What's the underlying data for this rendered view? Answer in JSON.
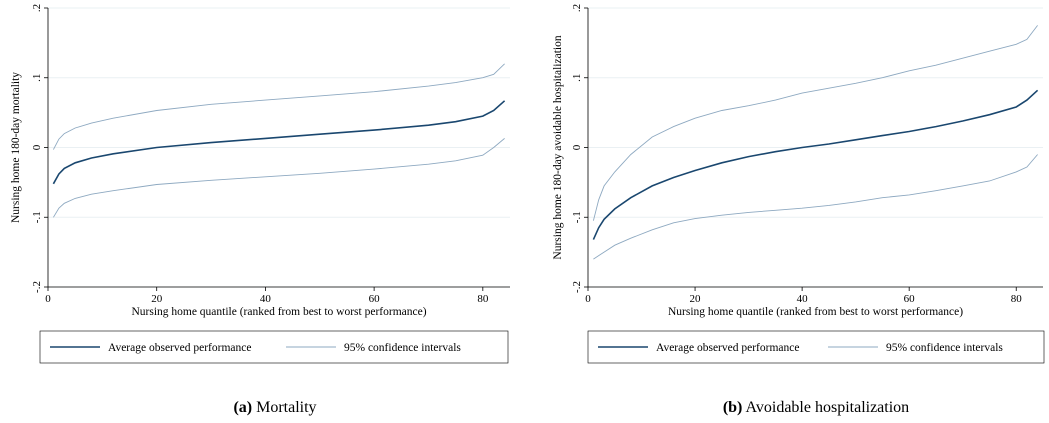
{
  "colors": {
    "average": "#1a476f",
    "ci": "#8ea9c1",
    "grid": "#eaf0f3"
  },
  "legend": {
    "average_label": "Average observed performance",
    "ci_label": "95% confidence intervals"
  },
  "chart_data": [
    {
      "type": "line",
      "xlabel": "Nursing home quantile (ranked from best to worst performance)",
      "ylabel": "Nursing home 180-day mortality",
      "xlim": [
        0,
        85
      ],
      "ylim": [
        -0.2,
        0.2
      ],
      "xticks": [
        0,
        20,
        40,
        60,
        80
      ],
      "yticks": [
        -0.2,
        -0.1,
        0,
        0.1,
        0.2
      ],
      "ytick_labels": [
        "-.2",
        "-.1",
        "0",
        ".1",
        ".2"
      ],
      "grid": true,
      "legend_position": "bottom",
      "caption_letter": "(a)",
      "caption_text": "Mortality",
      "x": [
        1,
        2,
        3,
        5,
        8,
        12,
        20,
        30,
        40,
        50,
        60,
        70,
        75,
        80,
        82,
        84
      ],
      "series": [
        {
          "name": "Average observed performance",
          "role": "average",
          "values": [
            -0.052,
            -0.038,
            -0.03,
            -0.022,
            -0.015,
            -0.009,
            0.0,
            0.007,
            0.013,
            0.019,
            0.025,
            0.032,
            0.037,
            0.045,
            0.053,
            0.067
          ]
        },
        {
          "name": "95% confidence intervals",
          "role": "ci",
          "values": [
            -0.003,
            0.012,
            0.02,
            0.028,
            0.035,
            0.042,
            0.053,
            0.062,
            0.068,
            0.074,
            0.08,
            0.088,
            0.093,
            0.1,
            0.105,
            0.12
          ]
        },
        {
          "name": "95% confidence intervals",
          "role": "ci",
          "values": [
            -0.1,
            -0.087,
            -0.08,
            -0.073,
            -0.067,
            -0.062,
            -0.053,
            -0.047,
            -0.042,
            -0.037,
            -0.031,
            -0.024,
            -0.019,
            -0.011,
            0.0,
            0.013
          ]
        }
      ]
    },
    {
      "type": "line",
      "xlabel": "Nursing home quantile (ranked from best to worst performance)",
      "ylabel": "Nursing home 180-day avoidable hospitalization",
      "xlim": [
        0,
        85
      ],
      "ylim": [
        -0.2,
        0.2
      ],
      "xticks": [
        0,
        20,
        40,
        60,
        80
      ],
      "yticks": [
        -0.2,
        -0.1,
        0,
        0.1,
        0.2
      ],
      "ytick_labels": [
        "-.2",
        "-.1",
        "0",
        ".1",
        ".2"
      ],
      "grid": true,
      "legend_position": "bottom",
      "caption_letter": "(b)",
      "caption_text": "Avoidable hospitalization",
      "x": [
        1,
        2,
        3,
        5,
        8,
        12,
        16,
        20,
        25,
        30,
        35,
        40,
        45,
        50,
        55,
        60,
        65,
        70,
        75,
        80,
        82,
        84
      ],
      "series": [
        {
          "name": "Average observed performance",
          "role": "average",
          "values": [
            -0.132,
            -0.115,
            -0.103,
            -0.088,
            -0.072,
            -0.055,
            -0.043,
            -0.033,
            -0.022,
            -0.013,
            -0.006,
            0.0,
            0.005,
            0.011,
            0.017,
            0.023,
            0.03,
            0.038,
            0.047,
            0.058,
            0.068,
            0.082
          ]
        },
        {
          "name": "95% confidence intervals",
          "role": "ci",
          "values": [
            -0.105,
            -0.075,
            -0.055,
            -0.035,
            -0.01,
            0.015,
            0.03,
            0.042,
            0.053,
            0.06,
            0.068,
            0.078,
            0.085,
            0.092,
            0.1,
            0.11,
            0.118,
            0.128,
            0.138,
            0.148,
            0.155,
            0.175
          ]
        },
        {
          "name": "95% confidence intervals",
          "role": "ci",
          "values": [
            -0.16,
            -0.155,
            -0.15,
            -0.14,
            -0.13,
            -0.118,
            -0.108,
            -0.102,
            -0.097,
            -0.093,
            -0.09,
            -0.087,
            -0.083,
            -0.078,
            -0.072,
            -0.068,
            -0.062,
            -0.055,
            -0.048,
            -0.035,
            -0.028,
            -0.01
          ]
        }
      ]
    }
  ]
}
